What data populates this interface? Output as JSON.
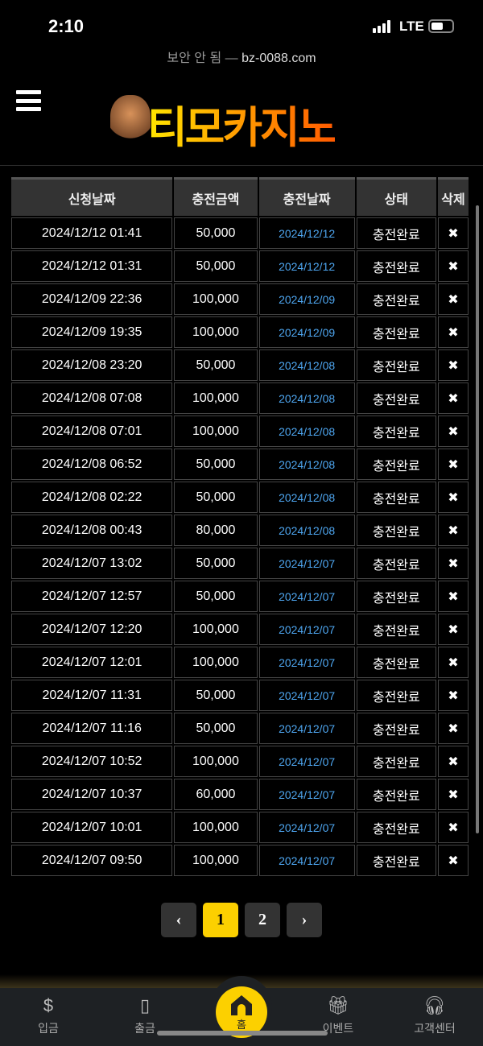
{
  "status_bar": {
    "time": "2:10",
    "network": "LTE"
  },
  "browser": {
    "security": "보안 안 됨",
    "separator": "—",
    "domain": "bz-0088.com"
  },
  "header": {
    "logo_text": "티모카지노"
  },
  "table": {
    "columns": [
      "신청날짜",
      "충전금액",
      "충전날짜",
      "상태",
      "삭제"
    ],
    "rows": [
      [
        "2024/12/12 01:41",
        "50,000",
        "2024/12/12",
        "충전완료"
      ],
      [
        "2024/12/12 01:31",
        "50,000",
        "2024/12/12",
        "충전완료"
      ],
      [
        "2024/12/09 22:36",
        "100,000",
        "2024/12/09",
        "충전완료"
      ],
      [
        "2024/12/09 19:35",
        "100,000",
        "2024/12/09",
        "충전완료"
      ],
      [
        "2024/12/08 23:20",
        "50,000",
        "2024/12/08",
        "충전완료"
      ],
      [
        "2024/12/08 07:08",
        "100,000",
        "2024/12/08",
        "충전완료"
      ],
      [
        "2024/12/08 07:01",
        "100,000",
        "2024/12/08",
        "충전완료"
      ],
      [
        "2024/12/08 06:52",
        "50,000",
        "2024/12/08",
        "충전완료"
      ],
      [
        "2024/12/08 02:22",
        "50,000",
        "2024/12/08",
        "충전완료"
      ],
      [
        "2024/12/08 00:43",
        "80,000",
        "2024/12/08",
        "충전완료"
      ],
      [
        "2024/12/07 13:02",
        "50,000",
        "2024/12/07",
        "충전완료"
      ],
      [
        "2024/12/07 12:57",
        "50,000",
        "2024/12/07",
        "충전완료"
      ],
      [
        "2024/12/07 12:20",
        "100,000",
        "2024/12/07",
        "충전완료"
      ],
      [
        "2024/12/07 12:01",
        "100,000",
        "2024/12/07",
        "충전완료"
      ],
      [
        "2024/12/07 11:31",
        "50,000",
        "2024/12/07",
        "충전완료"
      ],
      [
        "2024/12/07 11:16",
        "50,000",
        "2024/12/07",
        "충전완료"
      ],
      [
        "2024/12/07 10:52",
        "100,000",
        "2024/12/07",
        "충전완료"
      ],
      [
        "2024/12/07 10:37",
        "60,000",
        "2024/12/07",
        "충전완료"
      ],
      [
        "2024/12/07 10:01",
        "100,000",
        "2024/12/07",
        "충전완료"
      ],
      [
        "2024/12/07 09:50",
        "100,000",
        "2024/12/07",
        "충전완료"
      ]
    ],
    "delete_glyph": "✖"
  },
  "pagination": {
    "prev": "‹",
    "pages": [
      "1",
      "2"
    ],
    "current": "1",
    "next": "›"
  },
  "bottom_nav": [
    {
      "label": "입금",
      "icon": "dollar-coin-icon"
    },
    {
      "label": "출금",
      "icon": "atm-icon"
    },
    {
      "label": "홈",
      "icon": "home-icon"
    },
    {
      "label": "이벤트",
      "icon": "gift-icon"
    },
    {
      "label": "고객센터",
      "icon": "headset-icon"
    }
  ],
  "colors": {
    "accent": "#fcd000",
    "link": "#4ea6f0",
    "nav_bg": "#1e2124"
  }
}
